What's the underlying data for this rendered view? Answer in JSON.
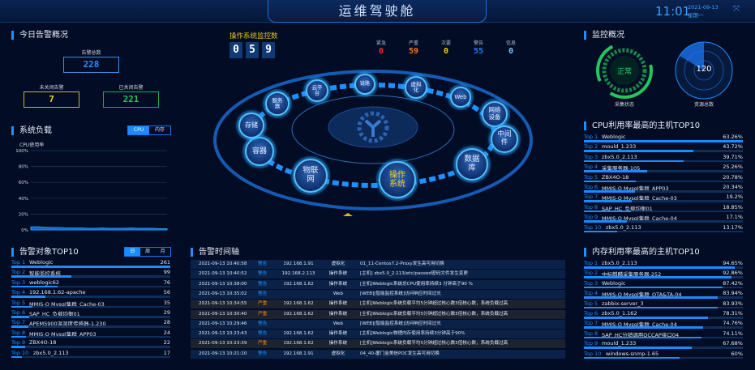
{
  "header": {
    "title": "运维驾驶舱",
    "time": "11:01",
    "date": "2021-09-13",
    "weekday": "星期一",
    "fullscreen_icon": "expand-icon"
  },
  "alarm_overview": {
    "title": "今日告警概况",
    "total_label": "告警总数",
    "total": "228",
    "open_label": "未关闭告警",
    "open": "7",
    "closed_label": "已关闭告警",
    "closed": "221",
    "colors": {
      "total": "#1e90ff",
      "open": "#e5d21b",
      "closed": "#22c55e"
    }
  },
  "system_load": {
    "title": "系统负载",
    "tabs": [
      "CPU",
      "内存"
    ],
    "active_tab": "CPU",
    "chart_data": {
      "type": "area",
      "ylabel": "CPU使用率",
      "yticks": [
        "100%",
        "80%",
        "60%",
        "40%",
        "20%",
        "0%"
      ],
      "ylim": [
        0,
        100
      ],
      "values": [
        4,
        4,
        3.5,
        3,
        3,
        2.5,
        2.5,
        2.5,
        2,
        2,
        2.5,
        2,
        2,
        2,
        2.5,
        2,
        2,
        2,
        1.5,
        1.5
      ],
      "grid": true
    }
  },
  "alarm_top10": {
    "title": "告警对象TOP10",
    "tabs": [
      "日",
      "周",
      "月"
    ],
    "active_tab": "日",
    "max": 261,
    "items": [
      {
        "rank": "Top 1",
        "name": "Weblogic",
        "value": 261
      },
      {
        "rank": "Top 2",
        "name": "智能监控系统",
        "value": 99
      },
      {
        "rank": "Top 3",
        "name": "weblogic62",
        "value": 76
      },
      {
        "rank": "Top 4",
        "name": "192.168.1.62-apache",
        "value": 56
      },
      {
        "rank": "Top 5",
        "name": "MMIS-O Mysql集群_Cache-03",
        "value": 35
      },
      {
        "rank": "Top 6",
        "name": "SAP_HC_负载均衡01",
        "value": 29
      },
      {
        "rank": "Top 7",
        "name": "APEM5900温湿度传感器-1.230",
        "value": 28
      },
      {
        "rank": "Top 8",
        "name": "MMIS-O Mysql集群_APP03",
        "value": 24
      },
      {
        "rank": "Top 9",
        "name": "ZBX4O-18",
        "value": 22
      },
      {
        "rank": "Top 10",
        "name": "zbx5.0_2.113",
        "value": 17
      }
    ]
  },
  "os_monitor": {
    "title": "操作系统监控数",
    "digits": [
      "0",
      "5",
      "9"
    ],
    "severity": [
      {
        "label": "紧急",
        "value": "0",
        "color": "#ff2a2a"
      },
      {
        "label": "严重",
        "value": "59",
        "color": "#ff7a1a"
      },
      {
        "label": "次要",
        "value": "0",
        "color": "#f5d000"
      },
      {
        "label": "警告",
        "value": "55",
        "color": "#1e7bff"
      },
      {
        "label": "信息",
        "value": "0",
        "color": "#7cc4ff"
      }
    ]
  },
  "categories": {
    "active": "操作系统",
    "nodes": [
      "云平台",
      "链路",
      "虚拟化",
      "Web",
      "网络设备",
      "中间件",
      "数据库",
      "操作系统",
      "物联网",
      "容器",
      "存储",
      "服务器"
    ]
  },
  "timeline": {
    "title": "告警时间轴",
    "rows": [
      {
        "time": "2021-09-13 10:40:58",
        "level": "警告",
        "ip": "192.168.1.91",
        "type": "虚拟化",
        "desc": "01_11-Centos7.2-Proxy发生高可用切换"
      },
      {
        "time": "2021-09-13 10:40:52",
        "level": "警告",
        "ip": "192.168.2.113",
        "type": "操作系统",
        "desc": "[主机] zbx5.0_2.113/etc/passwd密码文件发生变更"
      },
      {
        "time": "2021-09-13 10:38:00",
        "level": "警告",
        "ip": "192.168.1.62",
        "type": "操作系统",
        "desc": "[主机]Weblogic系统总CPU使用率持续3 分钟高于90 %"
      },
      {
        "time": "2021-09-13 10:35:02",
        "level": "警告",
        "ip": "",
        "type": "Web",
        "desc": "[WEB][智能监控系统]访问响应时间过长"
      },
      {
        "time": "2021-09-13 10:34:55",
        "level": "严重",
        "ip": "192.168.1.62",
        "type": "操作系统",
        "desc": "[主机]Weblogic系统负载平均5分钟超过核心数3倍核心数，系统负载过高"
      },
      {
        "time": "2021-09-13 10:30:40",
        "level": "严重",
        "ip": "192.168.1.62",
        "type": "操作系统",
        "desc": "[主机]Weblogic系统负载平均5分钟超过核心数3倍核心数，系统负载过高"
      },
      {
        "time": "2021-09-13 10:29:46",
        "level": "警告",
        "ip": "",
        "type": "Web",
        "desc": "[WEB][智能监控系统]访问响应时间过长"
      },
      {
        "time": "2021-09-13 10:23:43",
        "level": "警告",
        "ip": "192.168.1.62",
        "type": "操作系统",
        "desc": "[主机]Weblogic物理内存使用率持续3分钟高于90%"
      },
      {
        "time": "2021-09-13 10:23:39",
        "level": "严重",
        "ip": "192.168.1.62",
        "type": "操作系统",
        "desc": "[主机]Weblogic系统负载平均5分钟超过核心数3倍核心数，系统负载过高"
      },
      {
        "time": "2021-09-13 10:21:10",
        "level": "警告",
        "ip": "192.168.1.91",
        "type": "虚拟化",
        "desc": "04_40-厦门金美信POC发生高可用切换"
      }
    ]
  },
  "monitor_overview": {
    "title": "监控概况",
    "status_value": "正常",
    "status_label": "采集状态",
    "resource_value": "120",
    "resource_label": "资源总数"
  },
  "cpu_top10": {
    "title": "CPU利用率最高的主机TOP10",
    "items": [
      {
        "rank": "Top 1",
        "name": "Weblogic",
        "value": "63.26%",
        "pct": 63.26
      },
      {
        "rank": "Top 2",
        "name": "mould_1.233",
        "value": "43.72%",
        "pct": 43.72
      },
      {
        "rank": "Top 3",
        "name": "zbx5.0_2.113",
        "value": "39.71%",
        "pct": 39.71
      },
      {
        "rank": "Top 4",
        "name": "采集服务器-105",
        "value": "25.26%",
        "pct": 25.26
      },
      {
        "rank": "Top 5",
        "name": "ZBX4O-18",
        "value": "20.78%",
        "pct": 20.78
      },
      {
        "rank": "Top 6",
        "name": "MMIS-O Mysql集群_APP03",
        "value": "20.34%",
        "pct": 20.34
      },
      {
        "rank": "Top 7",
        "name": "MMIS-O Mysql集群_Cache-03",
        "value": "19.2%",
        "pct": 19.2
      },
      {
        "rank": "Top 8",
        "name": "SAP_HC_负载均衡01",
        "value": "18.85%",
        "pct": 18.85
      },
      {
        "rank": "Top 9",
        "name": "MMIS-O Mysql集群_Cache-04",
        "value": "17.1%",
        "pct": 17.1
      },
      {
        "rank": "Top 10",
        "name": "zbx5.0_2.113",
        "value": "13.17%",
        "pct": 13.17
      }
    ]
  },
  "mem_top10": {
    "title": "内存利用率最高的主机TOP10",
    "items": [
      {
        "rank": "Top 1",
        "name": "zbx5.0_2.113",
        "value": "94.65%",
        "pct": 94.65
      },
      {
        "rank": "Top 2",
        "name": "中标麒麟采集服务器-252",
        "value": "92.86%",
        "pct": 92.86
      },
      {
        "rank": "Top 3",
        "name": "Weblogic",
        "value": "87.42%",
        "pct": 87.42
      },
      {
        "rank": "Top 4",
        "name": "MMIS-O Mysql集群_OTA&TA-04",
        "value": "83.94%",
        "pct": 83.94
      },
      {
        "rank": "Top 5",
        "name": "zabbix-server_3",
        "value": "83.93%",
        "pct": 83.93
      },
      {
        "rank": "Top 6",
        "name": "zbx5.0_1.162",
        "value": "78.31%",
        "pct": 78.31
      },
      {
        "rank": "Top 7",
        "name": "MMIS-O Mysql集群_Cache-04",
        "value": "74.76%",
        "pct": 74.76
      },
      {
        "rank": "Top 8",
        "name": "SAP_HC分销调用OCCAP接口04",
        "value": "74.11%",
        "pct": 74.11
      },
      {
        "rank": "Top 9",
        "name": "mould_1.233",
        "value": "67.68%",
        "pct": 67.68
      },
      {
        "rank": "Top 10",
        "name": "windows-snmp-1.65",
        "value": "60%",
        "pct": 60
      }
    ]
  }
}
